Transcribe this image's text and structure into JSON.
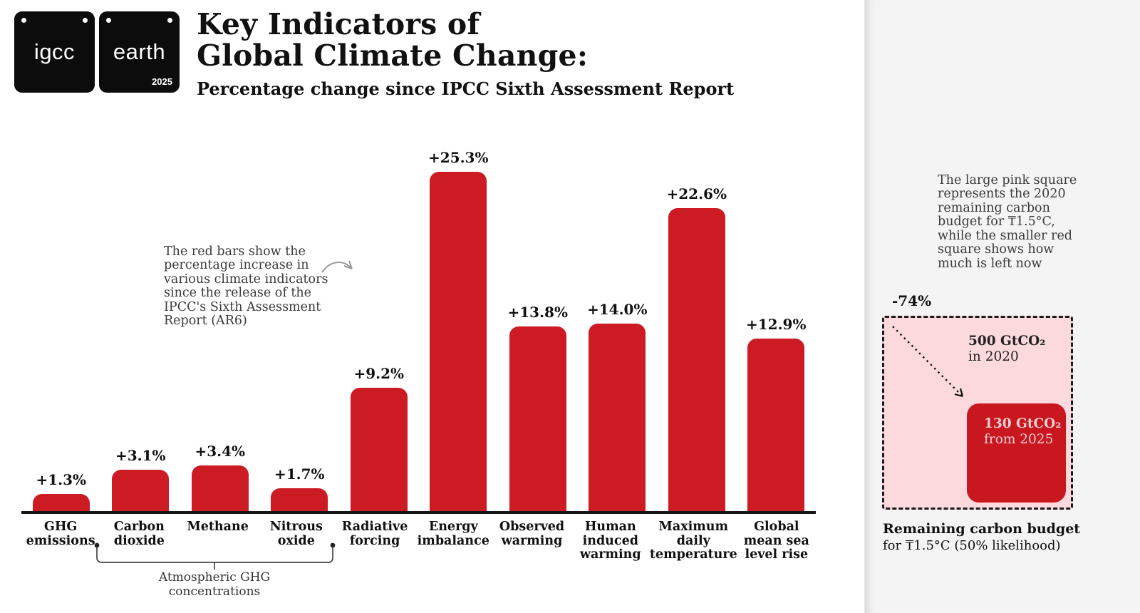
{
  "header": {
    "logo_badges": [
      {
        "text": "igcc"
      },
      {
        "text": "earth",
        "year": "2025"
      }
    ],
    "title_line1": "Key Indicators of",
    "title_line2": "Global Climate Change:",
    "subtitle": "Percentage change since IPCC Sixth Assessment Report"
  },
  "annotation": {
    "note": "The red bars show the\npercentage increase in\nvarious climate indicators\nsince the release of the\nIPCC's Sixth Assessment\nReport (AR6)"
  },
  "chart_data": {
    "type": "bar",
    "title": "Key Indicators of Global Climate Change: Percentage change since IPCC Sixth Assessment Report",
    "categories": [
      "GHG emissions",
      "Carbon dioxide",
      "Methane",
      "Nitrous oxide",
      "Radiative forcing",
      "Energy imbalance",
      "Observed warming",
      "Human induced warming",
      "Maximum daily temperature",
      "Global mean sea level rise"
    ],
    "category_label_lines": [
      "GHG\nemissions",
      "Carbon\ndioxide",
      "Methane",
      "Nitrous\noxide",
      "Radiative\nforcing",
      "Energy\nimbalance",
      "Observed\nwarming",
      "Human\ninduced\nwarming",
      "Maximum\ndaily\ntemperature",
      "Global\nmean sea\nlevel rise"
    ],
    "values": [
      1.3,
      3.1,
      3.4,
      1.7,
      9.2,
      25.3,
      13.8,
      14.0,
      22.6,
      12.9
    ],
    "value_labels": [
      "+1.3%",
      "+3.1%",
      "+3.4%",
      "+1.7%",
      "+9.2%",
      "+25.3%",
      "+13.8%",
      "+14.0%",
      "+22.6%",
      "+12.9%"
    ],
    "unit": "%",
    "ylim": [
      0,
      27
    ],
    "grid": false,
    "bar_color": "#cd1b23",
    "group_annotation": {
      "label": "Atmospheric GHG\nconcentrations",
      "from_category": "Carbon dioxide",
      "to_category": "Nitrous oxide"
    }
  },
  "side_panel": {
    "note": "The large pink square\nrepresents the 2020\nremaining carbon\nbudget for ₸1.5°C,\nwhile the smaller red\nsquare shows how\nmuch is left now",
    "delta_label": "-74%",
    "outer_square_label_line1": "500 GtCO₂",
    "outer_square_label_line2": "in 2020",
    "inner_square_label_line1": "130 GtCO₂",
    "inner_square_label_line2": "from 2025",
    "caption_line1": "Remaining carbon budget",
    "caption_line2": "for ₸1.5°C (50% likelihood)",
    "colors": {
      "pink_fill": "#fcd9dc",
      "red_fill": "#c9171f",
      "dash_border": "#1a1a1a"
    }
  },
  "icons": {
    "annotation_arrow": "curved-arrow",
    "panel_arrow": "curved-arrow",
    "budget_arrow": "dotted-diagonal-arrow",
    "bracket": "range-bracket"
  }
}
